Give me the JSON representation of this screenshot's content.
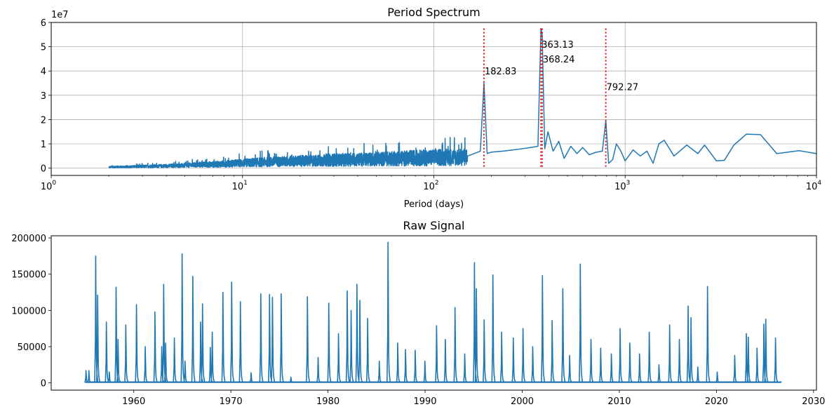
{
  "chart_data": [
    {
      "type": "line",
      "title": "Period Spectrum",
      "xlabel": "Period (days)",
      "ylabel": "",
      "xscale": "log",
      "xlim": [
        1,
        10000
      ],
      "ylim": [
        -3000000,
        60000000
      ],
      "y_offset_label": "1e7",
      "grid": true,
      "x_ticks": [
        {
          "value": 1,
          "base": "10",
          "exp": "0"
        },
        {
          "value": 10,
          "base": "10",
          "exp": "1"
        },
        {
          "value": 100,
          "base": "10",
          "exp": "2"
        },
        {
          "value": 1000,
          "base": "10",
          "exp": "3"
        },
        {
          "value": 10000,
          "base": "10",
          "exp": "4"
        }
      ],
      "y_ticks": [
        {
          "value": 0,
          "label": "0"
        },
        {
          "value": 10000000,
          "label": "1"
        },
        {
          "value": 20000000,
          "label": "2"
        },
        {
          "value": 30000000,
          "label": "3"
        },
        {
          "value": 40000000,
          "label": "4"
        },
        {
          "value": 50000000,
          "label": "5"
        },
        {
          "value": 60000000,
          "label": "6"
        }
      ],
      "series": [
        {
          "color": "#1f77b4",
          "x": [
            2.0,
            2.5,
            3.0,
            4.0,
            5.0,
            6.0,
            7.0,
            8.0,
            10.0,
            12.0,
            15.0,
            20.0,
            25.0,
            30.0,
            40.0,
            50.0,
            60.0,
            80.0,
            100.0,
            120.0,
            150.0,
            175.0,
            182.83,
            190.0,
            200.0,
            230.0,
            260.0,
            290.0,
            320.0,
            350.0,
            363.13,
            368.24,
            380.0,
            395.0,
            420.0,
            450.0,
            480.0,
            520.0,
            560.0,
            600.0,
            650.0,
            700.0,
            760.0,
            792.27,
            820.0,
            860.0,
            900.0,
            950.0,
            1000.0,
            1100.0,
            1200.0,
            1300.0,
            1400.0,
            1500.0,
            1600.0,
            1800.0,
            2100.0,
            2400.0,
            2600.0,
            3000.0,
            3300.0,
            3700.0,
            4300.0,
            5100.0,
            6200.0,
            8100.0,
            10000.0
          ],
          "y": [
            600000,
            800000,
            1000000,
            1300000,
            1600000,
            2000000,
            2200000,
            2500000,
            3000000,
            3400000,
            3800000,
            4200000,
            4400000,
            4800000,
            5000000,
            5300000,
            5500000,
            6000000,
            6200000,
            6400000,
            6500000,
            7000000,
            35000000,
            6000000,
            6600000,
            7000000,
            7500000,
            8000000,
            8500000,
            9000000,
            57500000,
            55000000,
            8000000,
            15000000,
            7000000,
            11000000,
            4000000,
            9000000,
            6000000,
            8500000,
            5500000,
            6500000,
            7000000,
            19500000,
            2000000,
            3500000,
            10000000,
            7000000,
            3000000,
            7500000,
            5000000,
            7000000,
            2000000,
            10000000,
            11500000,
            5000000,
            9500000,
            6000000,
            9500000,
            3000000,
            3200000,
            9500000,
            14000000,
            13800000,
            6000000,
            7200000,
            6000000
          ],
          "noise_band": {
            "from": 2.0,
            "to": 950.0
          }
        }
      ],
      "annotations": [
        {
          "x": 182.83,
          "label": "182.83",
          "label_y": 40000000
        },
        {
          "x": 363.13,
          "label": "363.13",
          "label_y": 51000000
        },
        {
          "x": 368.24,
          "label": "368.24",
          "label_y": 45000000
        },
        {
          "x": 792.27,
          "label": "792.27",
          "label_y": 33500000
        }
      ],
      "vline_color": "#e01010",
      "vline_top": 57500000,
      "vline_bottom": 0
    },
    {
      "type": "line",
      "title": "Raw Signal",
      "xlabel": "",
      "ylabel": "",
      "xlim": [
        1951.5,
        2030.3
      ],
      "ylim": [
        -10000,
        203000
      ],
      "grid": false,
      "x_ticks": [
        {
          "value": 1960,
          "label": "1960"
        },
        {
          "value": 1970,
          "label": "1970"
        },
        {
          "value": 1980,
          "label": "1980"
        },
        {
          "value": 1990,
          "label": "1990"
        },
        {
          "value": 2000,
          "label": "2000"
        },
        {
          "value": 2010,
          "label": "2010"
        },
        {
          "value": 2020,
          "label": "2020"
        },
        {
          "value": 2030,
          "label": "2030"
        }
      ],
      "y_ticks": [
        {
          "value": 0,
          "label": "0"
        },
        {
          "value": 50000,
          "label": "50000"
        },
        {
          "value": 100000,
          "label": "100000"
        },
        {
          "value": 150000,
          "label": "150000"
        },
        {
          "value": 200000,
          "label": "200000"
        }
      ],
      "series": [
        {
          "color": "#1f77b4",
          "start_year": 1955.0,
          "end_year": 2026.7,
          "baseline": 1000,
          "peaks": [
            [
              1955.1,
              17000
            ],
            [
              1955.4,
              17000
            ],
            [
              1956.1,
              175000
            ],
            [
              1956.3,
              121000
            ],
            [
              1957.2,
              84000
            ],
            [
              1957.5,
              15000
            ],
            [
              1958.2,
              132000
            ],
            [
              1958.4,
              60000
            ],
            [
              1959.2,
              80000
            ],
            [
              1960.3,
              108000
            ],
            [
              1961.2,
              50000
            ],
            [
              1962.2,
              98000
            ],
            [
              1962.9,
              50000
            ],
            [
              1963.1,
              136000
            ],
            [
              1963.3,
              55000
            ],
            [
              1964.2,
              62000
            ],
            [
              1965.0,
              178000
            ],
            [
              1965.3,
              30000
            ],
            [
              1966.1,
              147000
            ],
            [
              1966.9,
              84000
            ],
            [
              1967.1,
              109000
            ],
            [
              1967.9,
              49000
            ],
            [
              1968.1,
              70000
            ],
            [
              1969.2,
              125000
            ],
            [
              1970.1,
              139000
            ],
            [
              1971.0,
              112000
            ],
            [
              1972.1,
              14000
            ],
            [
              1973.1,
              123000
            ],
            [
              1974.0,
              122000
            ],
            [
              1974.3,
              118000
            ],
            [
              1975.2,
              123000
            ],
            [
              1976.2,
              8000
            ],
            [
              1977.9,
              119000
            ],
            [
              1979.0,
              35000
            ],
            [
              1980.1,
              110000
            ],
            [
              1981.1,
              68000
            ],
            [
              1982.0,
              127000
            ],
            [
              1982.4,
              100000
            ],
            [
              1983.0,
              136000
            ],
            [
              1983.3,
              114000
            ],
            [
              1984.1,
              89000
            ],
            [
              1985.3,
              30000
            ],
            [
              1986.2,
              194000
            ],
            [
              1987.2,
              55000
            ],
            [
              1988.0,
              46000
            ],
            [
              1989.0,
              45000
            ],
            [
              1990.0,
              30000
            ],
            [
              1991.2,
              79000
            ],
            [
              1992.1,
              60000
            ],
            [
              1993.1,
              104000
            ],
            [
              1994.1,
              40000
            ],
            [
              1995.1,
              166000
            ],
            [
              1995.3,
              130000
            ],
            [
              1996.1,
              87000
            ],
            [
              1997.0,
              149000
            ],
            [
              1997.9,
              70000
            ],
            [
              1999.1,
              62000
            ],
            [
              2000.1,
              75000
            ],
            [
              2001.1,
              50000
            ],
            [
              2002.1,
              148000
            ],
            [
              2003.1,
              86000
            ],
            [
              2004.2,
              130000
            ],
            [
              2004.9,
              38000
            ],
            [
              2006.0,
              164000
            ],
            [
              2007.1,
              60000
            ],
            [
              2008.1,
              48000
            ],
            [
              2009.2,
              40000
            ],
            [
              2010.1,
              75000
            ],
            [
              2011.1,
              55000
            ],
            [
              2012.1,
              40000
            ],
            [
              2013.1,
              70000
            ],
            [
              2014.1,
              25000
            ],
            [
              2015.2,
              80000
            ],
            [
              2016.2,
              60000
            ],
            [
              2017.1,
              106000
            ],
            [
              2017.4,
              90000
            ],
            [
              2018.1,
              22000
            ],
            [
              2019.1,
              133000
            ],
            [
              2020.1,
              15000
            ],
            [
              2021.9,
              38000
            ],
            [
              2023.1,
              68000
            ],
            [
              2023.3,
              63000
            ],
            [
              2024.2,
              48000
            ],
            [
              2024.9,
              81000
            ],
            [
              2025.1,
              88000
            ],
            [
              2026.1,
              62000
            ]
          ]
        }
      ]
    }
  ]
}
